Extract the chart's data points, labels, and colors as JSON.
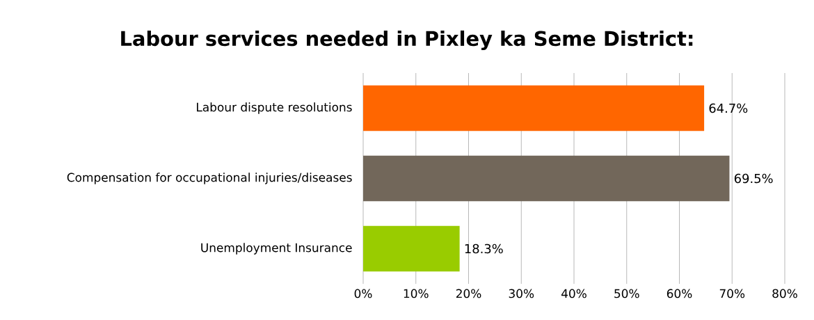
{
  "chart_data": {
    "type": "bar",
    "orientation": "horizontal",
    "title": "Labour services needed in Pixley ka Seme District:",
    "categories": [
      "Labour dispute resolutions",
      "Compensation for occupational injuries/diseases",
      "Unemployment Insurance"
    ],
    "values": [
      64.7,
      69.5,
      18.3
    ],
    "colors": [
      "#ff6600",
      "#72675a",
      "#99cc00"
    ],
    "value_labels": [
      "64.7%",
      "69.5%",
      "18.3%"
    ],
    "xlim": [
      0,
      80
    ],
    "xticks": [
      {
        "value": 0,
        "label": "0%"
      },
      {
        "value": 10,
        "label": "10%"
      },
      {
        "value": 20,
        "label": "20%"
      },
      {
        "value": 30,
        "label": "30%"
      },
      {
        "value": 40,
        "label": "40%"
      },
      {
        "value": 50,
        "label": "50%"
      },
      {
        "value": 60,
        "label": "60%"
      },
      {
        "value": 70,
        "label": "70%"
      },
      {
        "value": 80,
        "label": "80%"
      }
    ],
    "grid": "x"
  }
}
